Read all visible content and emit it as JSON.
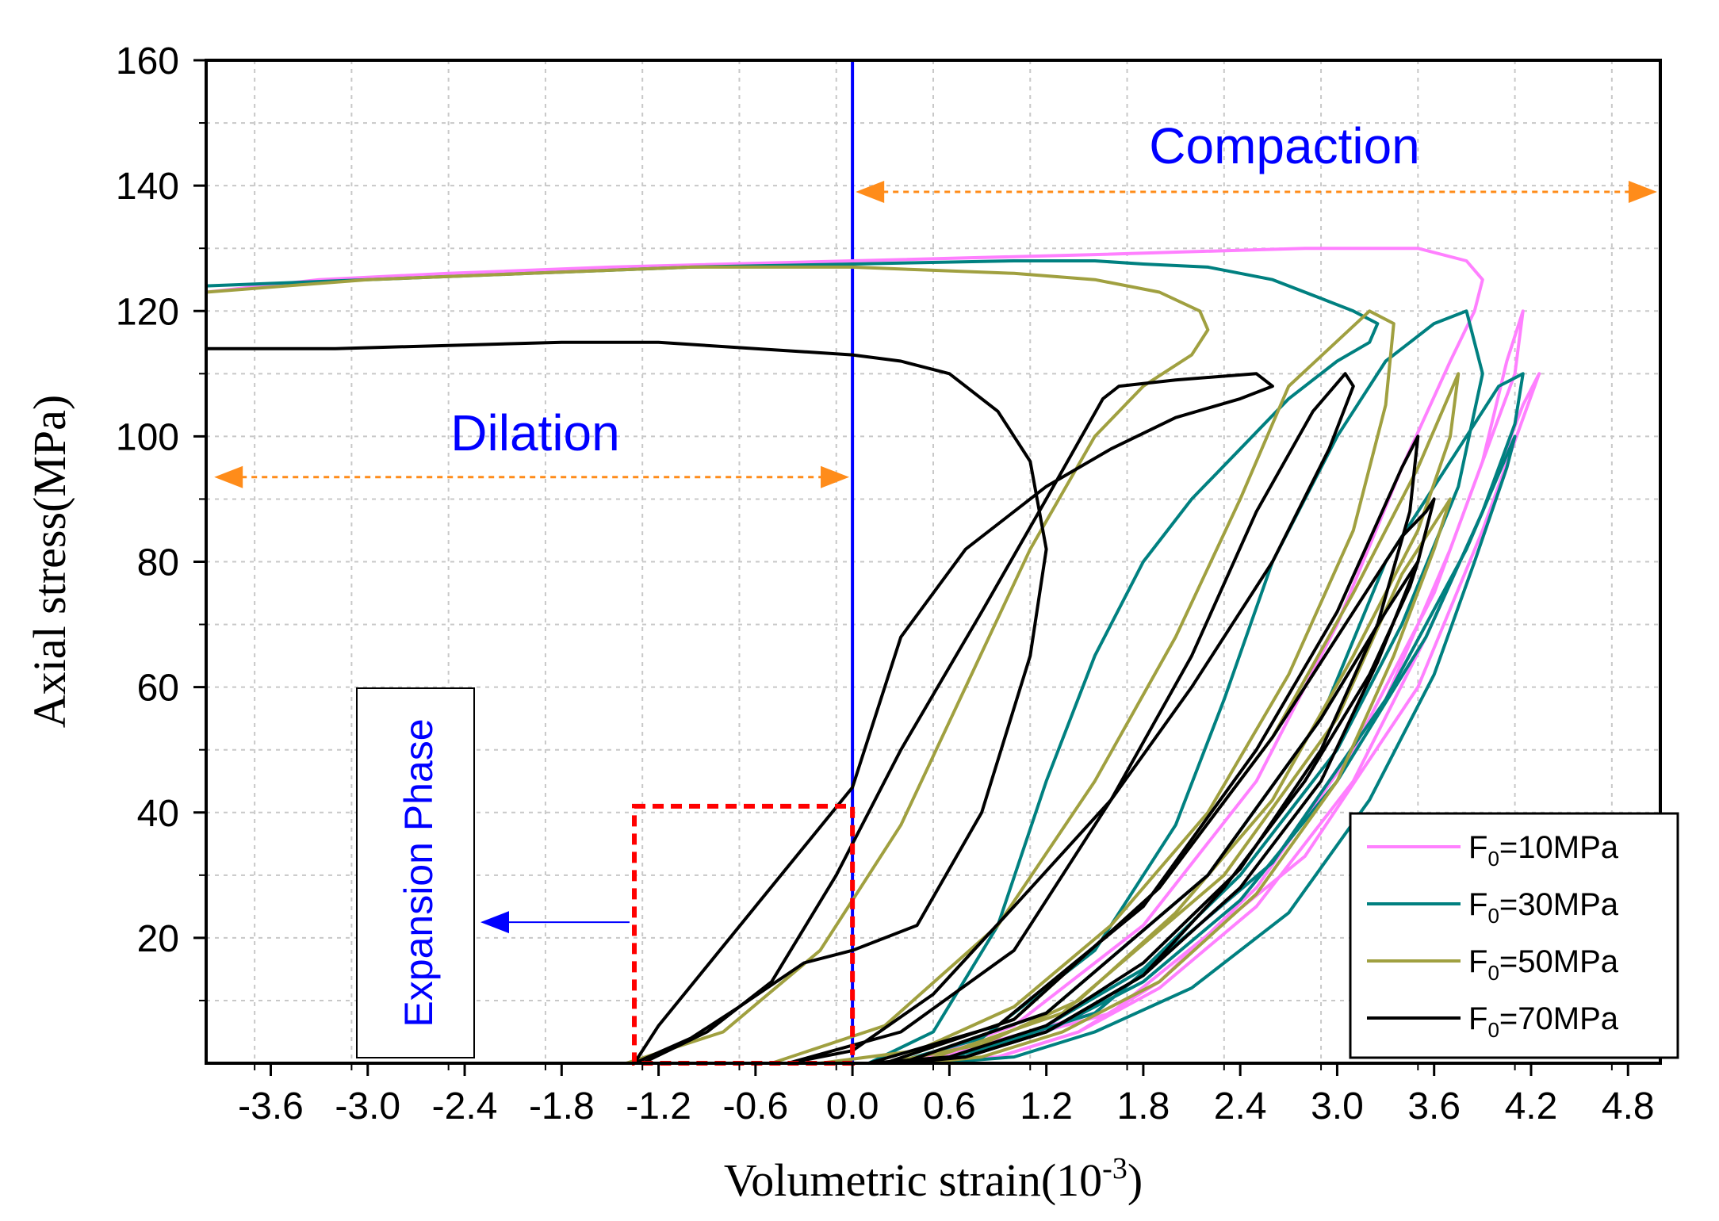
{
  "chart_data": {
    "type": "line",
    "xlabel": "Volumetric strain(10",
    "xlabel_exp": "-3",
    "xlabel_close": ")",
    "ylabel": "Axial stress(MPa)",
    "xlim": [
      -4.0,
      5.0
    ],
    "ylim": [
      0,
      160
    ],
    "grid": true,
    "x_ticks": [
      "-3.6",
      "-3.0",
      "-2.4",
      "-1.8",
      "-1.2",
      "-0.6",
      "0.0",
      "0.6",
      "1.2",
      "1.8",
      "2.4",
      "3.0",
      "3.6",
      "4.2",
      "4.8"
    ],
    "x_tick_values": [
      -3.6,
      -3.0,
      -2.4,
      -1.8,
      -1.2,
      -0.6,
      0.0,
      0.6,
      1.2,
      1.8,
      2.4,
      3.0,
      3.6,
      4.2,
      4.8
    ],
    "y_ticks": [
      "20",
      "40",
      "60",
      "80",
      "100",
      "120",
      "140",
      "160"
    ],
    "y_tick_values": [
      20,
      40,
      60,
      80,
      100,
      120,
      140,
      160
    ],
    "legend_position": "bottom-right",
    "series": [
      {
        "name": "F0=10MPa",
        "legend_base": "F",
        "legend_sub": "0",
        "legend_rest": "=10MPa",
        "color": "#ff80ff",
        "loops": [
          {
            "x": [
              0.45,
              1.6,
              2.8,
              3.5,
              3.9,
              4.25,
              4.15,
              3.9,
              3.55,
              3.1,
              2.5,
              1.9,
              1.4,
              0.9,
              0.5
            ],
            "y": [
              0,
              8,
              33,
              60,
              85,
              110,
              105,
              88,
              68,
              45,
              25,
              12,
              5,
              1,
              0
            ]
          },
          {
            "x": [
              0.4,
              1.5,
              2.6,
              3.3,
              3.7,
              4.1,
              4.15,
              4.05,
              3.9,
              3.6,
              3.1,
              2.5,
              1.9,
              1.4,
              0.9,
              0.4
            ],
            "y": [
              0,
              8,
              32,
              58,
              82,
              110,
              120,
              112,
              96,
              75,
              50,
              28,
              13,
              5,
              1,
              0
            ]
          },
          {
            "x": [
              0.35,
              1.0,
              1.8,
              2.5,
              3.0,
              3.4,
              3.7,
              3.85,
              3.9,
              3.8,
              3.5,
              2.8,
              1.5,
              0,
              -1.5,
              -2.5,
              -3.3,
              -4.0
            ],
            "y": [
              0,
              6,
              22,
              45,
              70,
              95,
              112,
              120,
              125,
              128,
              130,
              130,
              129,
              128,
              127,
              126,
              125,
              123
            ]
          }
        ]
      },
      {
        "name": "F0=30MPa",
        "legend_base": "F",
        "legend_sub": "0",
        "legend_rest": "=30MPa",
        "color": "#008080",
        "loops": [
          {
            "x": [
              0.5,
              1.5,
              2.6,
              3.3,
              3.8,
              4.1,
              4.05,
              3.85,
              3.6,
              3.2,
              2.7,
              2.1,
              1.5,
              1.0,
              0.5
            ],
            "y": [
              0,
              8,
              32,
              58,
              82,
              100,
              95,
              80,
              62,
              42,
              24,
              12,
              5,
              1,
              0
            ]
          },
          {
            "x": [
              0.3,
              1.2,
              2.2,
              2.9,
              3.3,
              3.8,
              4.0,
              4.15,
              4.1,
              3.9,
              3.55,
              3.0,
              2.4,
              1.8,
              1.2,
              0.6,
              0.3
            ],
            "y": [
              0,
              8,
              30,
              55,
              80,
              100,
              108,
              110,
              102,
              88,
              68,
              45,
              26,
              13,
              5,
              1,
              0
            ]
          },
          {
            "x": [
              0.25,
              0.8,
              1.5,
              2.0,
              2.3,
              2.6,
              3.0,
              3.3,
              3.6,
              3.8,
              3.9,
              3.75,
              3.4,
              3.0,
              2.4,
              1.8,
              1.2,
              0.7,
              0.25
            ],
            "y": [
              0,
              4,
              18,
              38,
              58,
              80,
              100,
              112,
              118,
              120,
              110,
              92,
              70,
              50,
              30,
              15,
              6,
              1,
              0
            ]
          },
          {
            "x": [
              0.1,
              0.5,
              0.9,
              1.2,
              1.5,
              1.8,
              2.1,
              2.4,
              2.7,
              3.0,
              3.2,
              3.25,
              3.1,
              2.9,
              2.6,
              2.2,
              1.8,
              1.5,
              1.0,
              0,
              -1.0,
              -2.0,
              -3.0,
              -4.0
            ],
            "y": [
              0,
              5,
              22,
              45,
              65,
              80,
              90,
              98,
              106,
              112,
              115,
              118,
              120,
              122,
              125,
              127,
              127.5,
              128,
              128,
              127.5,
              127,
              126,
              125,
              124
            ]
          }
        ]
      },
      {
        "name": "F0=50MPa",
        "legend_base": "F",
        "legend_sub": "0",
        "legend_rest": "=50MPa",
        "color": "#a0a040",
        "loops": [
          {
            "x": [
              0.4,
              1.3,
              2.3,
              3.0,
              3.4,
              3.7,
              3.6,
              3.35,
              3.0,
              2.5,
              1.9,
              1.3,
              0.8,
              0.4
            ],
            "y": [
              0,
              8,
              30,
              55,
              78,
              90,
              82,
              65,
              45,
              27,
              13,
              5,
              1,
              0
            ]
          },
          {
            "x": [
              0.2,
              1.0,
              1.9,
              2.6,
              3.1,
              3.5,
              3.75,
              3.7,
              3.5,
              3.1,
              2.6,
              2.0,
              1.4,
              0.8,
              0.2
            ],
            "y": [
              0,
              7,
              28,
              52,
              75,
              95,
              110,
              100,
              85,
              65,
              42,
              24,
              10,
              3,
              0
            ]
          },
          {
            "x": [
              -0.5,
              0.2,
              0.9,
              1.5,
              2.0,
              2.4,
              2.7,
              3.2,
              3.35,
              3.3,
              3.1,
              2.7,
              2.2,
              1.6,
              1.0,
              0.4,
              -0.2,
              -0.5
            ],
            "y": [
              0,
              6,
              22,
              45,
              68,
              90,
              108,
              120,
              118,
              105,
              85,
              62,
              40,
              22,
              9,
              2,
              0,
              0
            ]
          },
          {
            "x": [
              -1.4,
              -0.8,
              -0.2,
              0.3,
              0.7,
              1.1,
              1.5,
              1.8,
              2.1,
              2.2,
              2.15,
              1.9,
              1.5,
              1.0,
              0.5,
              0,
              -1.0,
              -2.0,
              -3.0,
              -4.0
            ],
            "y": [
              0,
              5,
              18,
              38,
              60,
              82,
              100,
              108,
              113,
              117,
              120,
              123,
              125,
              126,
              126.5,
              127,
              127,
              126,
              125,
              123
            ]
          }
        ]
      },
      {
        "name": "F0=70MPa",
        "legend_base": "F",
        "legend_sub": "0",
        "legend_rest": "=70MPa",
        "color": "#000000",
        "loops": [
          {
            "x": [
              0.3,
              1.2,
              2.2,
              2.9,
              3.3,
              3.5,
              3.45,
              3.2,
              2.8,
              2.3,
              1.8,
              1.2,
              0.7,
              0.3
            ],
            "y": [
              0,
              8,
              30,
              55,
              72,
              80,
              76,
              62,
              45,
              28,
              14,
              5,
              1,
              0
            ]
          },
          {
            "x": [
              0.2,
              1.0,
              1.9,
              2.6,
              3.1,
              3.4,
              3.55,
              3.6,
              3.5,
              3.25,
              2.9,
              2.4,
              1.8,
              1.2,
              0.7,
              0.2
            ],
            "y": [
              0,
              7,
              28,
              52,
              72,
              84,
              88,
              90,
              80,
              64,
              45,
              28,
              14,
              5,
              1,
              0
            ]
          },
          {
            "x": [
              0.1,
              0.9,
              1.8,
              2.5,
              3.0,
              3.4,
              3.5,
              3.45,
              3.25,
              2.9,
              2.4,
              1.8,
              1.2,
              0.6,
              0.1
            ],
            "y": [
              0,
              6,
              25,
              50,
              72,
              95,
              100,
              88,
              70,
              50,
              31,
              16,
              6,
              1,
              0
            ]
          },
          {
            "x": [
              -0.4,
              0.3,
              1.0,
              1.6,
              2.1,
              2.5,
              2.85,
              3.05,
              3.1,
              2.95,
              2.6,
              2.1,
              1.6,
              1.0,
              0.5,
              0,
              -0.4
            ],
            "y": [
              0,
              5,
              18,
              42,
              65,
              88,
              104,
              110,
              108,
              98,
              80,
              60,
              42,
              25,
              11,
              2,
              0
            ]
          },
          {
            "x": [
              -1.3,
              -0.9,
              -0.5,
              -0.1,
              0.3,
              0.8,
              1.2,
              1.55,
              1.65,
              2.0,
              2.5,
              2.6,
              2.4,
              2.0,
              1.6,
              1.2,
              0.7,
              0.3,
              0,
              -0.6,
              -1.2,
              -1.35
            ],
            "y": [
              0,
              5,
              13,
              30,
              50,
              72,
              90,
              106,
              108,
              109,
              110,
              108,
              106,
              103,
              98,
              92,
              82,
              68,
              44,
              25,
              6,
              0
            ]
          },
          {
            "x": [
              -1.35,
              -1.0,
              -0.7,
              -0.3,
              0,
              0.4,
              0.8,
              1.1,
              1.2,
              1.1,
              0.9,
              0.6,
              0.3,
              0,
              -0.6,
              -1.2,
              -1.8,
              -2.5,
              -3.2,
              -4.0
            ],
            "y": [
              0,
              4,
              9,
              16,
              18,
              22,
              40,
              65,
              82,
              96,
              104,
              110,
              112,
              113,
              114,
              115,
              115,
              114.5,
              114,
              114
            ]
          }
        ]
      }
    ],
    "annotations": {
      "compaction": "Compaction",
      "dilation": "Dilation",
      "expansion_phase": "Expansion Phase",
      "zero_line_color": "#0000ff",
      "arrow_color": "#ff8c1a",
      "box_color": "#ff0000",
      "expansion_box": {
        "x0": -1.35,
        "x1": 0.0,
        "y0": 0,
        "y1": 41
      },
      "expansion_arrow_y": 22.5,
      "compaction_arrow": {
        "x0": 0.0,
        "x1": 5.0,
        "y": 139
      },
      "dilation_arrow": {
        "x0": -4.0,
        "x1": 0.0,
        "y": 93.5
      }
    }
  }
}
